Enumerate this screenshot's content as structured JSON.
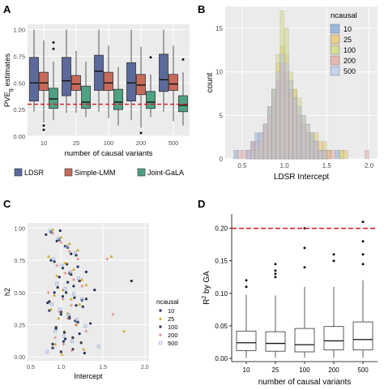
{
  "colors": {
    "ldsr": "#5b6a9a",
    "slmm": "#c86a5a",
    "jgala": "#4fa184",
    "ref_line": "#d7191c",
    "panel_bg": "#ebebeb",
    "grid": "#ffffff",
    "hist": {
      "10": "#7fa7d6",
      "25": "#e8c36a",
      "100": "#cfd57a",
      "200": "#e3a7a0",
      "500": "#b8c7ea"
    },
    "scatter": {
      "10": "#22315e",
      "25": "#d2a51d",
      "100": "#2e3b4a",
      "200": "#e17a78",
      "500": "#9fb0e3"
    }
  },
  "panels": {
    "a": "A",
    "b": "B",
    "c": "C",
    "d": "D"
  },
  "chart_data": [
    {
      "panel": "A",
      "type": "box",
      "ylabel_main": "PVE",
      "ylabel_sub": "g",
      "ylabel_rest": " estimates",
      "xlabel": "number of causal variants",
      "categories": [
        "10",
        "25",
        "100",
        "200",
        "500"
      ],
      "ylim": [
        0,
        1.05
      ],
      "yticks": [
        "0.00",
        "0.25",
        "0.50",
        "0.75",
        "1.00"
      ],
      "yticks_values": [
        0,
        0.25,
        0.5,
        0.75,
        1.0
      ],
      "reference_line": 0.3,
      "legend": [
        "LDSR",
        "Simple-LMM",
        "Joint-GaLA"
      ],
      "series": [
        {
          "name": "LDSR",
          "boxes": [
            {
              "min": 0.23,
              "q1": 0.33,
              "med": 0.5,
              "q3": 0.74,
              "max": 1.0,
              "outliers": []
            },
            {
              "min": 0.22,
              "q1": 0.38,
              "med": 0.52,
              "q3": 0.74,
              "max": 1.0,
              "outliers": []
            },
            {
              "min": 0.23,
              "q1": 0.43,
              "med": 0.61,
              "q3": 0.76,
              "max": 1.0,
              "outliers": []
            },
            {
              "min": 0.15,
              "q1": 0.33,
              "med": 0.5,
              "q3": 0.69,
              "max": 1.0,
              "outliers": []
            },
            {
              "min": 0.23,
              "q1": 0.42,
              "med": 0.53,
              "q3": 0.77,
              "max": 1.0,
              "outliers": []
            }
          ]
        },
        {
          "name": "Simple-LMM",
          "boxes": [
            {
              "min": 0.13,
              "q1": 0.43,
              "med": 0.5,
              "q3": 0.6,
              "max": 0.9,
              "outliers": [
                0.1,
                0.06
              ]
            },
            {
              "min": 0.22,
              "q1": 0.43,
              "med": 0.49,
              "q3": 0.57,
              "max": 0.8,
              "outliers": []
            },
            {
              "min": 0.17,
              "q1": 0.43,
              "med": 0.5,
              "q3": 0.6,
              "max": 0.85,
              "outliers": []
            },
            {
              "min": 0.08,
              "q1": 0.39,
              "med": 0.48,
              "q3": 0.58,
              "max": 0.84,
              "outliers": [
                0.03
              ]
            },
            {
              "min": 0.14,
              "q1": 0.43,
              "med": 0.49,
              "q3": 0.58,
              "max": 0.85,
              "outliers": []
            }
          ]
        },
        {
          "name": "Joint-GaLA",
          "boxes": [
            {
              "min": 0.15,
              "q1": 0.26,
              "med": 0.35,
              "q3": 0.45,
              "max": 0.7,
              "outliers": [
                0.88,
                0.82
              ]
            },
            {
              "min": 0.18,
              "q1": 0.26,
              "med": 0.32,
              "q3": 0.47,
              "max": 0.7,
              "outliers": []
            },
            {
              "min": 0.1,
              "q1": 0.25,
              "med": 0.32,
              "q3": 0.44,
              "max": 0.65,
              "outliers": []
            },
            {
              "min": 0.18,
              "q1": 0.26,
              "med": 0.32,
              "q3": 0.42,
              "max": 0.58,
              "outliers": [
                0.74
              ]
            },
            {
              "min": 0.1,
              "q1": 0.23,
              "med": 0.29,
              "q3": 0.38,
              "max": 0.6,
              "outliers": [
                0.72
              ]
            }
          ]
        }
      ]
    },
    {
      "panel": "B",
      "type": "histogram",
      "xlabel": "LDSR Intercept",
      "ylabel": "count",
      "xlim": [
        0.3,
        2.1
      ],
      "ylim": [
        0,
        17.5
      ],
      "xticks": [
        "0.5",
        "1.0",
        "1.5",
        "2.0"
      ],
      "xticks_values": [
        0.5,
        1.0,
        1.5,
        2.0
      ],
      "yticks": [
        "0",
        "5",
        "10",
        "15"
      ],
      "yticks_values": [
        0,
        5,
        10,
        15
      ],
      "legend_title": "ncausal",
      "legend": [
        "10",
        "25",
        "100",
        "200",
        "500"
      ],
      "bin_start": 0.4,
      "bin_width": 0.05,
      "series": [
        {
          "name": "10",
          "values": [
            1,
            0,
            0,
            1,
            2,
            3,
            3,
            4,
            6,
            8,
            9,
            10,
            9,
            8,
            7,
            5,
            4,
            3,
            3,
            2,
            1,
            1,
            0,
            0,
            1,
            0,
            0,
            0,
            0,
            0,
            0,
            0,
            0
          ]
        },
        {
          "name": "25",
          "values": [
            0,
            0,
            0,
            0,
            1,
            1,
            2,
            4,
            6,
            8,
            11,
            13,
            12,
            9,
            8,
            6,
            5,
            4,
            3,
            3,
            2,
            2,
            1,
            0,
            0,
            1,
            1,
            0,
            0,
            0,
            0,
            0,
            0
          ]
        },
        {
          "name": "100",
          "values": [
            0,
            0,
            0,
            0,
            0,
            1,
            2,
            3,
            5,
            8,
            12,
            17,
            15,
            10,
            8,
            7,
            5,
            3,
            3,
            2,
            1,
            1,
            1,
            0,
            0,
            1,
            0,
            0,
            0,
            0,
            0,
            0,
            0
          ]
        },
        {
          "name": "200",
          "values": [
            0,
            1,
            1,
            1,
            2,
            2,
            3,
            4,
            5,
            7,
            9,
            11,
            10,
            8,
            7,
            5,
            4,
            3,
            2,
            2,
            1,
            1,
            1,
            1,
            0,
            0,
            0,
            0,
            0,
            0,
            0,
            1,
            0
          ]
        },
        {
          "name": "500",
          "values": [
            0,
            0,
            0,
            1,
            1,
            2,
            3,
            4,
            6,
            8,
            10,
            12,
            11,
            9,
            7,
            6,
            5,
            4,
            3,
            2,
            1,
            1,
            0,
            0,
            0,
            0,
            0,
            0,
            0,
            0,
            0,
            0,
            0
          ]
        }
      ]
    },
    {
      "panel": "C",
      "type": "scatter",
      "xlabel": "Intercept",
      "ylabel": "h2",
      "xlim": [
        0.6,
        2.05
      ],
      "ylim": [
        -0.03,
        1.04
      ],
      "xticks": [
        "0.5",
        "1.0",
        "1.5",
        "2.0"
      ],
      "xticks_values": [
        0.5,
        1.0,
        1.5,
        2.0
      ],
      "yticks": [
        "0.00",
        "0.25",
        "0.50",
        "0.75",
        "1.00"
      ],
      "yticks_values": [
        0,
        0.25,
        0.5,
        0.75,
        1.0
      ],
      "legend_title": "ncausal",
      "legend": [
        "10",
        "25",
        "100",
        "200",
        "500"
      ],
      "symbols": {
        "10": "circle",
        "25": "triangle",
        "100": "square",
        "200": "plus",
        "500": "box"
      },
      "series": [
        {
          "name": "10",
          "x": [
            0.82,
            0.95,
            1.05,
            1.12,
            0.88,
            1.2,
            1.3,
            0.98,
            1.08,
            1.15,
            0.92,
            1.02,
            1.25,
            1.18,
            0.86,
            1.0,
            1.1,
            1.35,
            0.94,
            1.22,
            1.05,
            0.9,
            1.14,
            1.28,
            0.99,
            1.07,
            1.4,
            0.84,
            1.17,
            1.03
          ],
          "y": [
            0.95,
            0.9,
            0.86,
            0.8,
            0.75,
            0.7,
            0.66,
            0.62,
            0.58,
            0.55,
            0.5,
            0.47,
            0.44,
            0.4,
            0.36,
            0.33,
            0.3,
            0.26,
            0.22,
            0.18,
            0.14,
            0.1,
            0.06,
            0.03,
            0.98,
            0.72,
            0.52,
            0.42,
            0.28,
            0.12
          ]
        },
        {
          "name": "25",
          "x": [
            0.9,
            1.0,
            1.1,
            1.2,
            0.85,
            1.05,
            1.15,
            0.95,
            1.25,
            1.3,
            1.02,
            0.92,
            1.12,
            1.22,
            0.88,
            1.08,
            1.6,
            1.75,
            0.97,
            1.18,
            1.04,
            1.14,
            0.93,
            1.27,
            1.01
          ],
          "y": [
            0.99,
            0.93,
            0.88,
            0.83,
            0.78,
            0.73,
            0.68,
            0.63,
            0.6,
            0.56,
            0.52,
            0.48,
            0.45,
            0.41,
            0.37,
            0.34,
            0.78,
            0.2,
            0.3,
            0.25,
            0.2,
            0.15,
            0.1,
            0.06,
            0.02
          ]
        },
        {
          "name": "100",
          "x": [
            0.88,
            0.98,
            1.08,
            1.18,
            0.92,
            1.02,
            1.12,
            1.22,
            0.96,
            1.06,
            1.16,
            0.86,
            1.26,
            1.0,
            1.1,
            1.2,
            0.94,
            1.04,
            1.14,
            1.24,
            0.9,
            1.0,
            1.1,
            1.3,
            1.84
          ],
          "y": [
            0.97,
            0.91,
            0.85,
            0.79,
            0.74,
            0.69,
            0.64,
            0.59,
            0.54,
            0.5,
            0.46,
            0.43,
            0.39,
            0.35,
            0.31,
            0.27,
            0.23,
            0.19,
            0.15,
            0.11,
            0.07,
            0.04,
            0.65,
            0.45,
            0.59
          ]
        },
        {
          "name": "200",
          "x": [
            0.9,
            1.0,
            1.1,
            1.2,
            0.95,
            1.05,
            1.15,
            1.25,
            0.85,
            1.55,
            1.62,
            1.02,
            1.12,
            0.98,
            1.08,
            1.18,
            1.3,
            0.93,
            1.03,
            1.13
          ],
          "y": [
            0.96,
            0.89,
            0.82,
            0.76,
            0.71,
            0.65,
            0.6,
            0.55,
            0.5,
            0.76,
            0.33,
            0.45,
            0.4,
            0.35,
            0.3,
            0.25,
            0.2,
            0.15,
            0.1,
            0.05
          ]
        },
        {
          "name": "500",
          "x": [
            0.87,
            0.97,
            1.07,
            1.17,
            0.91,
            1.01,
            1.11,
            1.21,
            0.95,
            1.05,
            1.15,
            1.25,
            0.89,
            0.99,
            1.09,
            1.19,
            1.29,
            0.93,
            1.03,
            1.13,
            1.45,
            0.83
          ],
          "y": [
            0.98,
            0.92,
            0.86,
            0.81,
            0.76,
            0.71,
            0.66,
            0.61,
            0.57,
            0.53,
            0.49,
            0.45,
            0.41,
            0.37,
            0.33,
            0.29,
            0.24,
            0.2,
            0.16,
            0.12,
            0.08,
            0.04
          ]
        }
      ]
    },
    {
      "panel": "D",
      "type": "box",
      "ylabel_main": "R",
      "ylabel_sup": "2",
      "ylabel_rest": " by GA",
      "xlabel": "number of causal variants",
      "categories": [
        "10",
        "25",
        "100",
        "200",
        "500"
      ],
      "ylim": [
        -0.005,
        0.222
      ],
      "yticks": [
        "0.00",
        "0.05",
        "0.10",
        "0.15",
        "0.20"
      ],
      "yticks_values": [
        0,
        0.05,
        0.1,
        0.15,
        0.2
      ],
      "reference_line": 0.2,
      "boxes": [
        {
          "min": 0.001,
          "q1": 0.012,
          "med": 0.024,
          "q3": 0.042,
          "max": 0.098,
          "outliers": [
            0.11,
            0.12
          ]
        },
        {
          "min": 0.001,
          "q1": 0.011,
          "med": 0.023,
          "q3": 0.041,
          "max": 0.097,
          "outliers": [
            0.125,
            0.13,
            0.135,
            0.145
          ]
        },
        {
          "min": 0.001,
          "q1": 0.01,
          "med": 0.021,
          "q3": 0.046,
          "max": 0.11,
          "outliers": [
            0.14,
            0.17,
            0.2
          ]
        },
        {
          "min": 0.001,
          "q1": 0.013,
          "med": 0.027,
          "q3": 0.049,
          "max": 0.11,
          "outliers": [
            0.15,
            0.16
          ]
        },
        {
          "min": 0.001,
          "q1": 0.013,
          "med": 0.029,
          "q3": 0.056,
          "max": 0.12,
          "outliers": [
            0.145,
            0.16,
            0.18,
            0.21
          ]
        }
      ]
    }
  ]
}
